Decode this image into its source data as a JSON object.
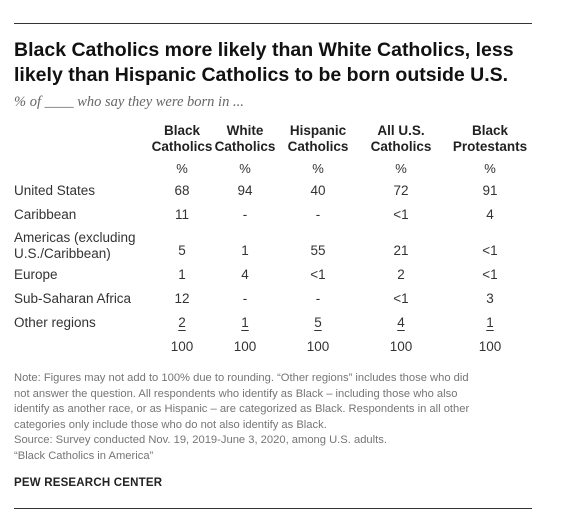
{
  "title": "Black Catholics more likely than White Catholics, less likely than Hispanic Catholics to be born outside U.S.",
  "subtitle": "% of ____ who say they were born in ...",
  "chart_data": {
    "type": "table",
    "columns": [
      {
        "line1": "Black",
        "line2": "Catholics",
        "unit": "%"
      },
      {
        "line1": "White",
        "line2": "Catholics",
        "unit": "%"
      },
      {
        "line1": "Hispanic",
        "line2": "Catholics",
        "unit": "%"
      },
      {
        "line1": "All U.S.",
        "line2": "Catholics",
        "unit": "%"
      },
      {
        "line1": "Black",
        "line2": "Protestants",
        "unit": "%"
      }
    ],
    "rows": [
      {
        "label": [
          "United States"
        ],
        "values": [
          "68",
          "94",
          "40",
          "72",
          "91"
        ]
      },
      {
        "label": [
          "Caribbean"
        ],
        "values": [
          "11",
          "-",
          "-",
          "<1",
          "4"
        ]
      },
      {
        "label": [
          "Americas (excluding",
          "U.S./Caribbean)"
        ],
        "values": [
          "5",
          "1",
          "55",
          "21",
          "<1"
        ]
      },
      {
        "label": [
          "Europe"
        ],
        "values": [
          "1",
          "4",
          "<1",
          "2",
          "<1"
        ]
      },
      {
        "label": [
          "Sub-Saharan Africa"
        ],
        "values": [
          "12",
          "-",
          "-",
          "<1",
          "3"
        ]
      },
      {
        "label": [
          "Other regions"
        ],
        "values": [
          "2",
          "1",
          "5",
          "4",
          "1"
        ]
      }
    ],
    "totals": [
      "100",
      "100",
      "100",
      "100",
      "100"
    ]
  },
  "notes": [
    "Note: Figures may not add to 100% due to rounding. “Other regions” includes those who did",
    "not answer the question. All respondents who identify as Black – including those who also",
    "identify as another race, or as Hispanic – are categorized as Black. Respondents in all other",
    "categories only include those who do not also identify as Black.",
    "Source: Survey conducted Nov. 19, 2019-June 3, 2020, among U.S. adults.",
    "“Black Catholics in America”"
  ],
  "source_label": "PEW RESEARCH CENTER"
}
